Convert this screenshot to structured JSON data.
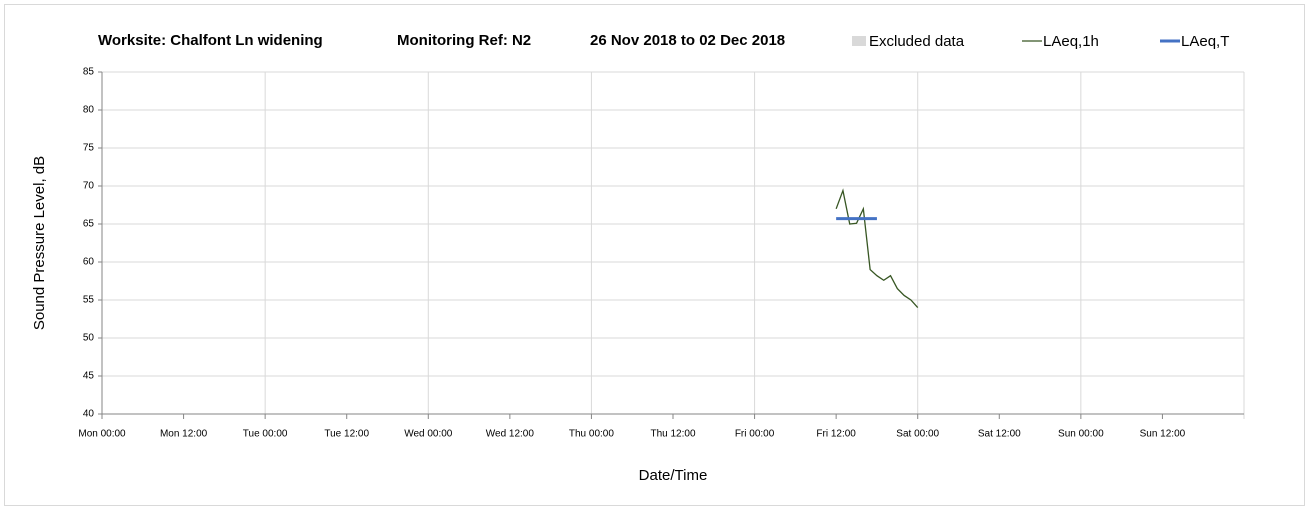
{
  "chart_data": {
    "type": "line",
    "title": [
      "Worksite: Chalfont Ln widening",
      "Monitoring Ref: N2",
      "26 Nov 2018 to 02 Dec 2018"
    ],
    "xlabel": "Date/Time",
    "ylabel": "Sound Pressure Level, dB",
    "xlim": [
      0,
      168
    ],
    "xticks": [
      {
        "value": 0,
        "label": "Mon 00:00"
      },
      {
        "value": 12,
        "label": "Mon 12:00"
      },
      {
        "value": 24,
        "label": "Tue 00:00"
      },
      {
        "value": 36,
        "label": "Tue 12:00"
      },
      {
        "value": 48,
        "label": "Wed 00:00"
      },
      {
        "value": 60,
        "label": "Wed 12:00"
      },
      {
        "value": 72,
        "label": "Thu 00:00"
      },
      {
        "value": 84,
        "label": "Thu 12:00"
      },
      {
        "value": 96,
        "label": "Fri 00:00"
      },
      {
        "value": 108,
        "label": "Fri 12:00"
      },
      {
        "value": 120,
        "label": "Sat 00:00"
      },
      {
        "value": 132,
        "label": "Sat 12:00"
      },
      {
        "value": 144,
        "label": "Sun 00:00"
      },
      {
        "value": 156,
        "label": "Sun 12:00"
      }
    ],
    "ylim": [
      40,
      85
    ],
    "yticks": [
      40,
      45,
      50,
      55,
      60,
      65,
      70,
      75,
      80,
      85
    ],
    "grid": true,
    "series": [
      {
        "name": "Excluded data",
        "color": "#d9d9d9",
        "x": [],
        "values": []
      },
      {
        "name": "LAeq,1h",
        "color": "#375623",
        "x": [
          108,
          109,
          110,
          111,
          112,
          113,
          114,
          115,
          116,
          117,
          118,
          119,
          120
        ],
        "values": [
          67,
          69.4,
          65,
          65.1,
          67,
          59,
          58.2,
          57.6,
          58.2,
          56.5,
          55.6,
          55,
          54
        ]
      },
      {
        "name": "LAeq,T",
        "color": "#4472c4",
        "x": [
          108,
          114
        ],
        "values": [
          65.7,
          65.7
        ]
      }
    ]
  }
}
